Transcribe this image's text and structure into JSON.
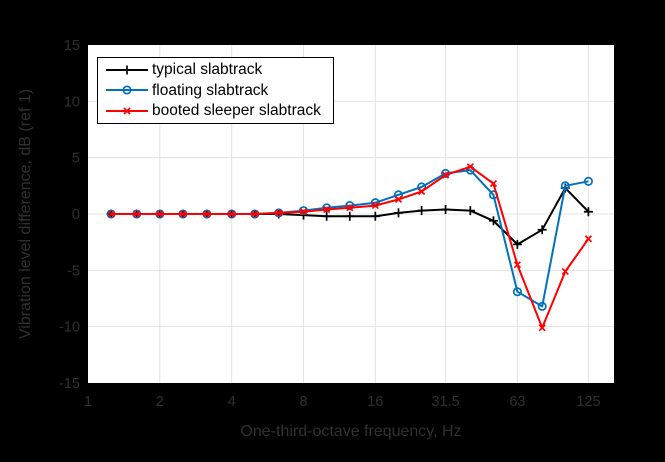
{
  "colors": {
    "figure_background": "#000000",
    "plot_background": "#ffffff",
    "grid": "#e3e3e3",
    "axis_text": "#303030",
    "legend_background": "#ffffff",
    "legend_border": "#000000",
    "legend_text": "#000000"
  },
  "chart_data": {
    "type": "line",
    "title": "",
    "xlabel": "One-third-octave frequency, Hz",
    "ylabel": "Vibration level difference, dB (ref 1)",
    "x_scale": "log",
    "xlim": [
      1,
      160
    ],
    "ylim": [
      -15,
      15
    ],
    "grid": true,
    "legend_position": "top-left",
    "x_ticks": [
      {
        "v": 1,
        "label": "1"
      },
      {
        "v": 2,
        "label": "2"
      },
      {
        "v": 4,
        "label": "4"
      },
      {
        "v": 8,
        "label": "8"
      },
      {
        "v": 16,
        "label": "16"
      },
      {
        "v": 31.5,
        "label": "31.5"
      },
      {
        "v": 63,
        "label": "63"
      },
      {
        "v": 125,
        "label": "125"
      }
    ],
    "y_ticks": [
      {
        "v": 15,
        "label": "15"
      },
      {
        "v": 10,
        "label": "10"
      },
      {
        "v": 5,
        "label": "5"
      },
      {
        "v": 0,
        "label": "0"
      },
      {
        "v": -5,
        "label": "-5"
      },
      {
        "v": -10,
        "label": "-10"
      },
      {
        "v": -15,
        "label": "-15"
      }
    ],
    "x": [
      1.25,
      1.6,
      2,
      2.5,
      3.15,
      4,
      5,
      6.3,
      8,
      10,
      12.5,
      16,
      20,
      25,
      31.5,
      40,
      50,
      63,
      80,
      100,
      125
    ],
    "series": [
      {
        "name": "typical slabtrack",
        "color": "#000000",
        "marker": "plus",
        "values": [
          0,
          0,
          0,
          0,
          0,
          0,
          0,
          0,
          -0.1,
          -0.2,
          -0.2,
          -0.2,
          0.1,
          0.3,
          0.4,
          0.3,
          -0.6,
          -2.7,
          -1.4,
          2.3,
          0.2
        ]
      },
      {
        "name": "floating slabtrack",
        "color": "#0072bd",
        "marker": "circle",
        "values": [
          0,
          0,
          0,
          0,
          0,
          0,
          0,
          0.1,
          0.3,
          0.55,
          0.75,
          1.0,
          1.7,
          2.4,
          3.6,
          3.9,
          1.7,
          -6.9,
          -8.2,
          2.5,
          2.9
        ]
      },
      {
        "name": "booted sleeper slabtrack",
        "color": "#ff0000",
        "marker": "x",
        "values": [
          0,
          0,
          0,
          0,
          0,
          0,
          0,
          0.1,
          0.2,
          0.4,
          0.55,
          0.75,
          1.3,
          2.0,
          3.45,
          4.2,
          2.7,
          -4.5,
          -10.1,
          -5.1,
          -2.2
        ]
      }
    ]
  }
}
